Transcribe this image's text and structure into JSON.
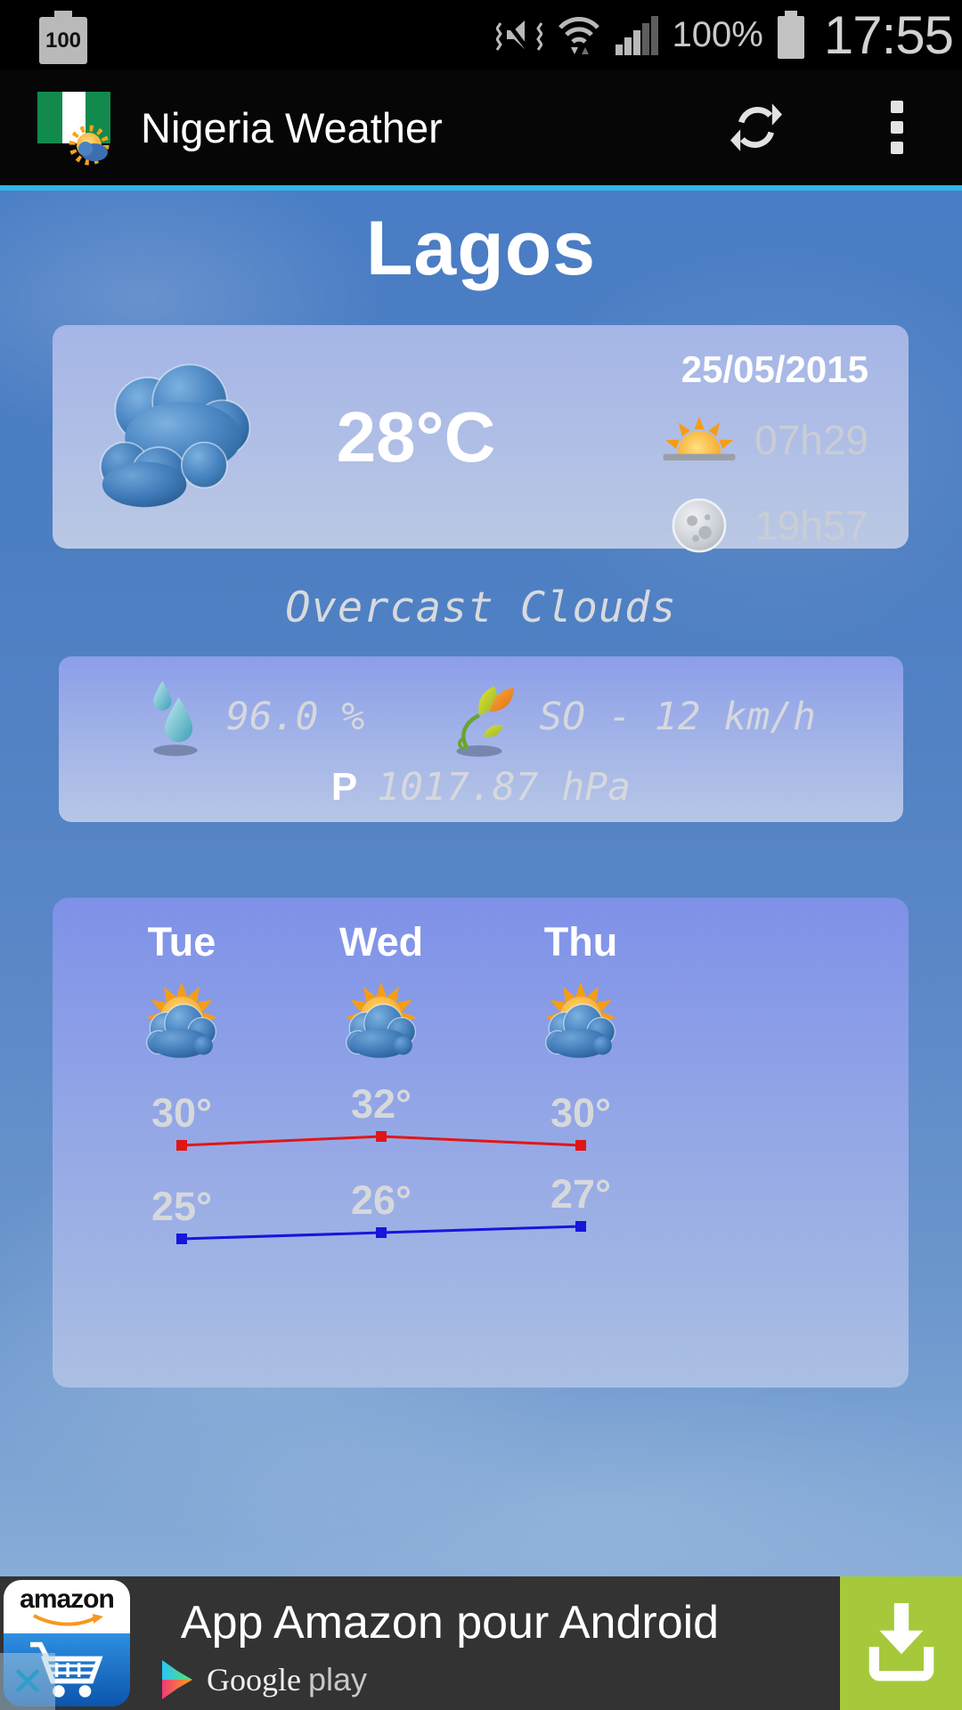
{
  "status_bar": {
    "battery_level": "100",
    "percent": "100%",
    "time": "17:55"
  },
  "app_bar": {
    "title": "Nigeria Weather"
  },
  "main": {
    "city": "Lagos",
    "current": {
      "temperature": "28°C",
      "date": "25/05/2015",
      "sunrise": "07h29",
      "sunset": "19h57",
      "condition": "Overcast Clouds",
      "humidity": "96.0 %",
      "wind": "SO - 12 km/h",
      "pressure_label": "P",
      "pressure": "1017.87 hPa"
    }
  },
  "forecast": {
    "days": [
      {
        "name": "Tue",
        "max": "30°",
        "min": "25°"
      },
      {
        "name": "Wed",
        "max": "32°",
        "min": "26°"
      },
      {
        "name": "Thu",
        "max": "30°",
        "min": "27°"
      }
    ]
  },
  "chart_data": {
    "type": "line",
    "categories": [
      "Tue",
      "Wed",
      "Thu"
    ],
    "series": [
      {
        "name": "max_temp",
        "color": "#e01616",
        "values": [
          30,
          32,
          30
        ]
      },
      {
        "name": "min_temp",
        "color": "#1616dd",
        "values": [
          25,
          26,
          27
        ]
      }
    ],
    "unit": "°C",
    "legend": "none",
    "grid": false
  },
  "ad": {
    "title": "App Amazon pour Android",
    "store_word_1": "Google",
    "store_word_2": "play",
    "app_icon_label": "amazon",
    "close_label": "✕"
  },
  "colors": {
    "accent": "#2eb6e8",
    "ad_green": "#a5c93b",
    "ad_bg": "#333333"
  }
}
